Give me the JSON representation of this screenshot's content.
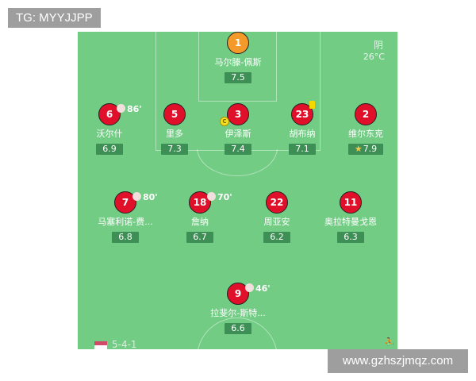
{
  "watermark_top": "TG: MYYJJPP",
  "watermark_bottom": "www.gzhszjmqz.com",
  "weather": {
    "condition": "阴",
    "temperature": "26°C"
  },
  "formation": "5-4-1",
  "colors": {
    "pitch": "#72cc84",
    "player": "#e0102a",
    "goalkeeper": "#f39a2a",
    "rating_bg": "#3e8f55"
  },
  "players": [
    {
      "number": "1",
      "name": "马尔滕-佩斯",
      "rating": "7.5",
      "gk": true
    },
    {
      "number": "6",
      "name": "沃尔什",
      "rating": "6.9",
      "sub": "86'"
    },
    {
      "number": "5",
      "name": "里多",
      "rating": "7.3"
    },
    {
      "number": "3",
      "name": "伊泽斯",
      "rating": "7.4",
      "captain": "C"
    },
    {
      "number": "23",
      "name": "胡布纳",
      "rating": "7.1",
      "yellow_card": true
    },
    {
      "number": "2",
      "name": "维尔东克",
      "rating": "7.9",
      "motm": true
    },
    {
      "number": "7",
      "name": "马塞利诺-费...",
      "rating": "6.8",
      "sub": "80'"
    },
    {
      "number": "18",
      "name": "詹纳",
      "rating": "6.7",
      "sub": "70'"
    },
    {
      "number": "22",
      "name": "周亚安",
      "rating": "6.2"
    },
    {
      "number": "11",
      "name": "奥拉特曼戈恩",
      "rating": "6.3"
    },
    {
      "number": "9",
      "name": "拉斐尔-斯特...",
      "rating": "6.6",
      "sub": "46'"
    }
  ]
}
